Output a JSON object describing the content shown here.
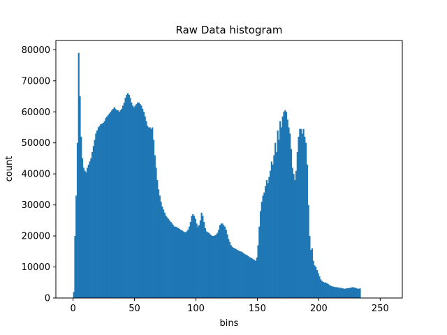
{
  "chart_data": {
    "type": "bar",
    "title": "Raw Data histogram",
    "xlabel": "bins",
    "ylabel": "count",
    "xlim": [
      -14,
      268
    ],
    "ylim": [
      0,
      83000
    ],
    "xticks": [
      0,
      50,
      100,
      150,
      200,
      250
    ],
    "yticks": [
      0,
      10000,
      20000,
      30000,
      40000,
      50000,
      60000,
      70000,
      80000
    ],
    "bar_color": "#1f77b4",
    "grid": false,
    "bin_start": 0,
    "bin_width": 1,
    "values": [
      2000,
      20000,
      33000,
      50000,
      79000,
      65000,
      52000,
      45000,
      42000,
      41000,
      40500,
      42000,
      43000,
      44000,
      45000,
      47000,
      49000,
      51000,
      53000,
      54000,
      55000,
      55500,
      56000,
      56200,
      56500,
      57000,
      58000,
      58500,
      59000,
      59500,
      60000,
      60500,
      61000,
      61500,
      61000,
      60500,
      60500,
      60000,
      60500,
      61000,
      62000,
      63000,
      64500,
      65500,
      66000,
      65500,
      64500,
      63000,
      62000,
      61500,
      62000,
      62500,
      63000,
      63000,
      62500,
      62000,
      61000,
      60000,
      58500,
      57000,
      55500,
      55000,
      55000,
      54500,
      55000,
      51000,
      46000,
      42000,
      38000,
      35000,
      33000,
      31000,
      29500,
      28500,
      27500,
      26500,
      26000,
      25500,
      25000,
      24500,
      24000,
      23500,
      23000,
      23000,
      22800,
      22500,
      22300,
      22000,
      21800,
      21500,
      21300,
      21200,
      21500,
      22000,
      23000,
      24500,
      26500,
      27000,
      26500,
      25500,
      24000,
      23000,
      23500,
      25000,
      27500,
      26500,
      24500,
      22500,
      21500,
      21200,
      21000,
      20500,
      20200,
      20000,
      20000,
      20200,
      20500,
      21000,
      22000,
      23500,
      24000,
      24000,
      23500,
      23000,
      22000,
      20500,
      19000,
      18000,
      17000,
      16500,
      16200,
      16000,
      15800,
      15500,
      15300,
      15100,
      15000,
      14800,
      14500,
      14200,
      14000,
      13800,
      13500,
      13200,
      13000,
      12800,
      12500,
      12300,
      12000,
      13000,
      17000,
      23000,
      28000,
      31000,
      33000,
      34000,
      36000,
      38000,
      37000,
      39000,
      41000,
      44000,
      43000,
      46000,
      50000,
      47000,
      54000,
      51000,
      57000,
      55000,
      58500,
      60000,
      60500,
      60000,
      57500,
      55000,
      53000,
      48000,
      42000,
      40000,
      38000,
      41000,
      47000,
      52000,
      54500,
      54500,
      53000,
      54500,
      52000,
      50000,
      43000,
      30000,
      20000,
      15500,
      16000,
      12000,
      10500,
      10000,
      9000,
      8000,
      7000,
      6000,
      5500,
      5200,
      5000,
      5000,
      4800,
      4500,
      4200,
      4000,
      3800,
      3700,
      3600,
      3500,
      3500,
      3400,
      3300,
      3300,
      3200,
      3100,
      3000,
      3000,
      3100,
      3200,
      3200,
      3300,
      3400,
      3500,
      3400,
      3300,
      3200,
      3000,
      3000,
      3100
    ]
  }
}
